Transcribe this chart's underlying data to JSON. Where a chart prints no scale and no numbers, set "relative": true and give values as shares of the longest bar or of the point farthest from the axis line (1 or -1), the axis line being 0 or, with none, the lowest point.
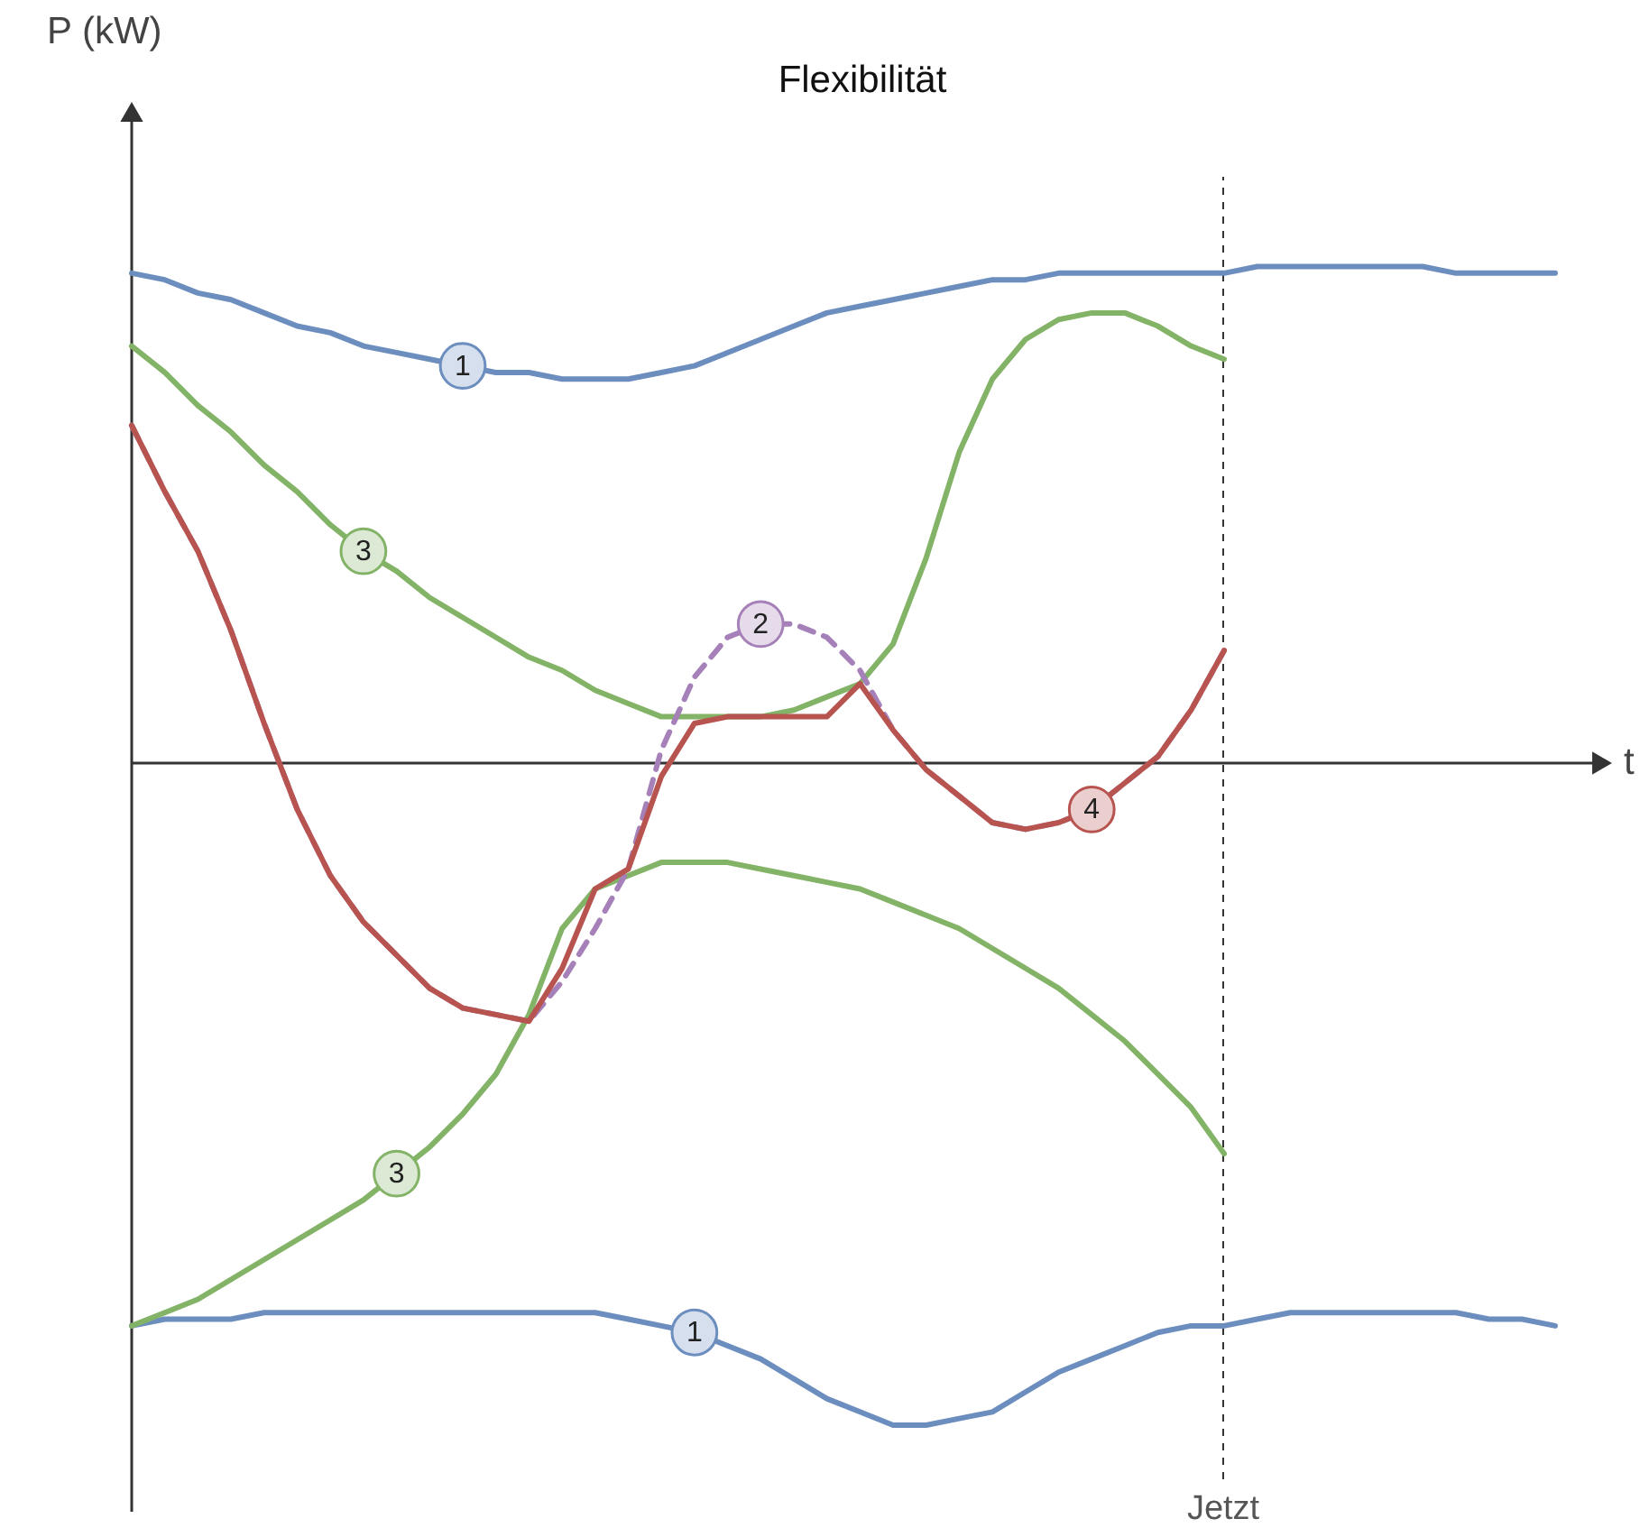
{
  "chart_data": {
    "type": "line",
    "title": "Flexibilität",
    "xlabel": "t",
    "annotations": [
      "P (kW)",
      "Jetzt"
    ],
    "relative": true,
    "categories": [
      null,
      null,
      null,
      null,
      null,
      null,
      null,
      null,
      null,
      null,
      null,
      null,
      null,
      null,
      null,
      null,
      null,
      null,
      null,
      null,
      null,
      null,
      null,
      null,
      null,
      null,
      null,
      null,
      null,
      null,
      null,
      null,
      null,
      null,
      null,
      null,
      null,
      null,
      null,
      null,
      null,
      null,
      null,
      null
    ],
    "series": [
      {
        "name": "1",
        "color": "#6c8ebf",
        "values": [
          0.74,
          0.73,
          0.71,
          0.7,
          0.68,
          0.66,
          0.65,
          0.63,
          0.62,
          0.61,
          0.6,
          0.59,
          0.59,
          0.58,
          0.58,
          0.58,
          0.59,
          0.6,
          0.62,
          0.64,
          0.66,
          0.68,
          0.69,
          0.7,
          0.71,
          0.72,
          0.73,
          0.73,
          0.74,
          0.74,
          0.74,
          0.74,
          0.74,
          0.74,
          0.75,
          0.75,
          0.75,
          0.75,
          0.75,
          0.75,
          0.74,
          0.74,
          0.74,
          0.74
        ]
      },
      {
        "name": "1",
        "color": "#6c8ebf",
        "values": [
          -0.85,
          -0.84,
          -0.84,
          -0.84,
          -0.83,
          -0.83,
          -0.83,
          -0.83,
          -0.83,
          -0.83,
          -0.83,
          -0.83,
          -0.83,
          -0.83,
          -0.83,
          -0.84,
          -0.85,
          -0.86,
          -0.88,
          -0.9,
          -0.93,
          -0.96,
          -0.98,
          -1.0,
          -1.0,
          -0.99,
          -0.98,
          -0.95,
          -0.92,
          -0.9,
          -0.88,
          -0.86,
          -0.85,
          -0.85,
          -0.84,
          -0.83,
          -0.83,
          -0.83,
          -0.83,
          -0.83,
          -0.83,
          -0.84,
          -0.84,
          -0.85
        ]
      },
      {
        "name": "3",
        "color": "#82b366",
        "values": [
          0.63,
          0.59,
          0.54,
          0.5,
          0.45,
          0.41,
          0.36,
          0.32,
          0.29,
          0.25,
          0.22,
          0.19,
          0.16,
          0.14,
          0.11,
          0.09,
          0.07,
          0.07,
          0.07,
          0.07,
          0.08,
          0.1,
          0.12,
          0.18,
          0.31,
          0.47,
          0.58,
          0.64,
          0.67,
          0.68,
          0.68,
          0.66,
          0.63,
          0.61,
          null,
          null,
          null,
          null,
          null,
          null,
          null,
          null,
          null,
          null
        ]
      },
      {
        "name": "3",
        "color": "#82b366",
        "values": [
          -0.85,
          -0.83,
          -0.81,
          -0.78,
          -0.75,
          -0.72,
          -0.69,
          -0.66,
          -0.62,
          -0.58,
          -0.53,
          -0.47,
          -0.38,
          -0.25,
          -0.19,
          -0.17,
          -0.15,
          -0.15,
          -0.15,
          -0.16,
          -0.17,
          -0.18,
          -0.19,
          -0.21,
          -0.23,
          -0.25,
          -0.28,
          -0.31,
          -0.34,
          -0.38,
          -0.42,
          -0.47,
          -0.52,
          -0.59,
          null,
          null,
          null,
          null,
          null,
          null,
          null,
          null,
          null,
          null
        ]
      },
      {
        "name": "2",
        "color": "#a680b8",
        "line_style": "dashed",
        "values": [
          0.51,
          0.41,
          0.32,
          0.2,
          0.06,
          -0.07,
          -0.17,
          -0.24,
          -0.29,
          -0.34,
          -0.37,
          -0.38,
          -0.39,
          -0.33,
          -0.25,
          -0.16,
          0.02,
          0.13,
          0.19,
          0.21,
          0.21,
          0.19,
          0.14,
          0.05,
          -0.01,
          -0.05,
          -0.09,
          -0.1,
          -0.09,
          -0.07,
          -0.03,
          0.01,
          0.08,
          0.17,
          null,
          null,
          null,
          null,
          null,
          null,
          null,
          null,
          null,
          null
        ]
      },
      {
        "name": "4",
        "color": "#b85450",
        "values": [
          0.51,
          0.41,
          0.32,
          0.2,
          0.06,
          -0.07,
          -0.17,
          -0.24,
          -0.29,
          -0.34,
          -0.37,
          -0.38,
          -0.39,
          -0.31,
          -0.19,
          -0.16,
          -0.02,
          0.06,
          0.07,
          0.07,
          0.07,
          0.07,
          0.12,
          0.05,
          -0.01,
          -0.05,
          -0.09,
          -0.1,
          -0.09,
          -0.07,
          -0.03,
          0.01,
          0.08,
          0.17,
          null,
          null,
          null,
          null,
          null,
          null,
          null,
          null,
          null,
          null
        ]
      }
    ]
  }
}
